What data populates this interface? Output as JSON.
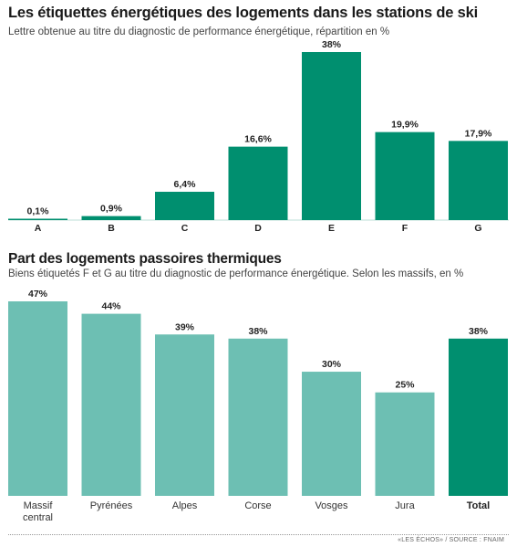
{
  "chart_data": [
    {
      "type": "bar",
      "title": "Les étiquettes énergétiques des logements dans les stations de ski",
      "subtitle": "Lettre obtenue au titre du diagnostic de performance énergétique, répartition en %",
      "categories": [
        "A",
        "B",
        "C",
        "D",
        "E",
        "F",
        "G"
      ],
      "values": [
        0.1,
        0.9,
        6.4,
        16.6,
        38,
        19.9,
        17.9
      ],
      "value_labels": [
        "0,1%",
        "0,9%",
        "6,4%",
        "16,6%",
        "38%",
        "19,9%",
        "17,9%"
      ],
      "ylim": [
        0,
        38
      ],
      "color": "#008f6f"
    },
    {
      "type": "bar",
      "title": "Part des logements passoires thermiques",
      "subtitle": "Biens étiquetés F et G au titre du diagnostic de performance énergétique. Selon les massifs, en %",
      "categories": [
        "Massif\ncentral",
        "Pyrénées",
        "Alpes",
        "Corse",
        "Vosges",
        "Jura",
        "Total"
      ],
      "values": [
        47,
        44,
        39,
        38,
        30,
        25,
        38
      ],
      "value_labels": [
        "47%",
        "44%",
        "39%",
        "38%",
        "30%",
        "25%",
        "38%"
      ],
      "ylim": [
        0,
        47
      ],
      "colors": [
        "#6dbfb3",
        "#6dbfb3",
        "#6dbfb3",
        "#6dbfb3",
        "#6dbfb3",
        "#6dbfb3",
        "#008f6f"
      ]
    }
  ],
  "source": "«LES ÉCHOS» / SOURCE : FNAIM"
}
